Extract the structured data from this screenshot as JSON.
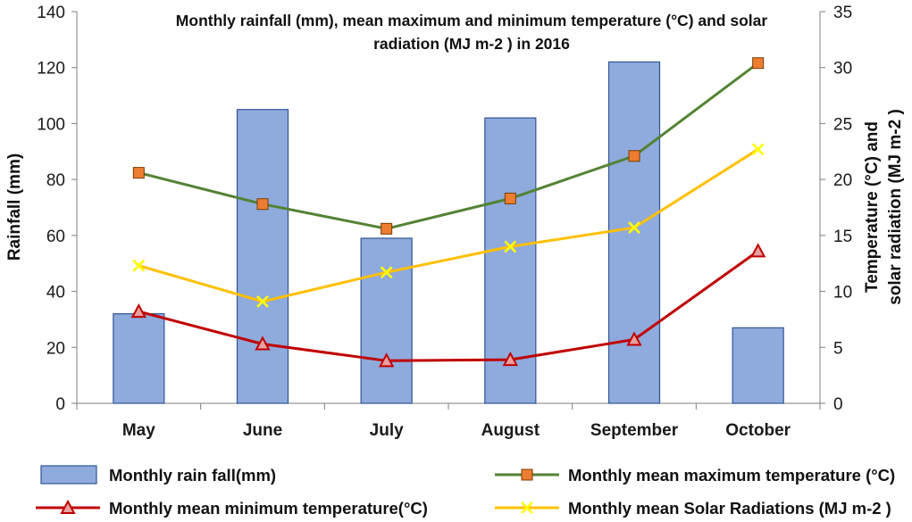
{
  "chart_data": {
    "type": "bar",
    "title_lines": [
      "Monthly rainfall (mm), mean maximum and minimum temperature (°C) and solar",
      "radiation (MJ m-2 ) in 2016"
    ],
    "categories": [
      "May",
      "June",
      "July",
      "August",
      "September",
      "October"
    ],
    "y_left": {
      "label": "Rainfall (mm)",
      "range": [
        0,
        140
      ],
      "ticks": [
        0,
        20,
        40,
        60,
        80,
        100,
        120,
        140
      ]
    },
    "y_right": {
      "label_lines": [
        "Temperature (°C) and",
        "solar radiation (MJ m-2 )"
      ],
      "range": [
        0,
        35
      ],
      "ticks": [
        0,
        5,
        10,
        15,
        20,
        25,
        30,
        35
      ]
    },
    "series": [
      {
        "name": "Monthly rain fall(mm)",
        "type": "bar",
        "axis": "left",
        "color": "#8faadc",
        "stroke": "#2f5597",
        "values": [
          32,
          105,
          59,
          102,
          122,
          27
        ]
      },
      {
        "name": "Monthly mean maximum temperature (°C)",
        "type": "line",
        "axis": "right",
        "color": "#548235",
        "marker": "square",
        "marker_color": "#ed7d31",
        "values": [
          20.6,
          17.8,
          15.6,
          18.3,
          22.1,
          30.4
        ]
      },
      {
        "name": "Monthly mean minimum temperature(°C)",
        "type": "line",
        "axis": "right",
        "color": "#c00000",
        "marker": "triangle",
        "marker_color": "#e8a0a0",
        "values": [
          8.2,
          5.3,
          3.8,
          3.9,
          5.7,
          13.6
        ]
      },
      {
        "name": "Monthly mean Solar Radiations (MJ m-2 )",
        "type": "line",
        "axis": "right",
        "color": "#ffc000",
        "marker": "x",
        "marker_color": "#ffff00",
        "values": [
          12.3,
          9.1,
          11.7,
          14.0,
          15.7,
          22.7
        ]
      }
    ],
    "legend_position": "bottom"
  }
}
